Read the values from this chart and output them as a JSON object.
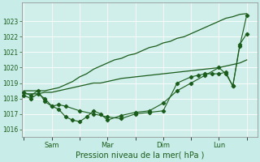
{
  "xlabel": "Pression niveau de la mer( hPa )",
  "bg_color": "#c8ece8",
  "plot_bg": "#d0eeea",
  "grid_color": "#b8ddd8",
  "line_color": "#1a5c1a",
  "ylim": [
    1015.5,
    1024.2
  ],
  "yticks": [
    1016,
    1017,
    1018,
    1019,
    1020,
    1021,
    1022,
    1023
  ],
  "xtick_positions": [
    0,
    4,
    8,
    12,
    16,
    20,
    24,
    28,
    32
  ],
  "xtick_labels": [
    "",
    "Sam",
    "",
    "Mar",
    "",
    "Dim",
    "",
    "Lun",
    ""
  ],
  "xlim": [
    -0.3,
    33.5
  ],
  "x_count": 33,
  "smooth1": [
    1018.5,
    1018.5,
    1018.5,
    1018.5,
    1018.6,
    1018.7,
    1018.9,
    1019.1,
    1019.4,
    1019.6,
    1019.9,
    1020.1,
    1020.3,
    1020.5,
    1020.6,
    1020.8,
    1020.9,
    1021.1,
    1021.3,
    1021.4,
    1021.6,
    1021.7,
    1021.9,
    1022.0,
    1022.2,
    1022.4,
    1022.6,
    1022.8,
    1023.0,
    1023.2,
    1023.3,
    1023.45,
    1023.5
  ],
  "smooth2": [
    1018.3,
    1018.3,
    1018.3,
    1018.4,
    1018.4,
    1018.5,
    1018.6,
    1018.7,
    1018.8,
    1018.9,
    1019.0,
    1019.0,
    1019.1,
    1019.2,
    1019.3,
    1019.35,
    1019.4,
    1019.45,
    1019.5,
    1019.55,
    1019.6,
    1019.65,
    1019.7,
    1019.75,
    1019.8,
    1019.85,
    1019.9,
    1019.95,
    1020.0,
    1020.1,
    1020.2,
    1020.3,
    1020.5
  ],
  "marker1_x": [
    0,
    1,
    2,
    3,
    4,
    5,
    6,
    7,
    8,
    9,
    10,
    11,
    12,
    14,
    16,
    18,
    20,
    22,
    24,
    26,
    28,
    29,
    30,
    31,
    32
  ],
  "marker1_y": [
    1018.4,
    1018.2,
    1018.5,
    1017.8,
    1017.5,
    1017.3,
    1016.8,
    1016.6,
    1016.5,
    1016.8,
    1017.2,
    1017.0,
    1016.6,
    1016.9,
    1017.1,
    1017.2,
    1017.7,
    1018.5,
    1019.0,
    1019.5,
    1020.0,
    1019.6,
    1018.8,
    1021.5,
    1022.2
  ],
  "marker2_x": [
    0,
    1,
    2,
    3,
    4,
    5,
    6,
    8,
    10,
    12,
    14,
    16,
    18,
    20,
    22,
    24,
    25,
    26,
    27,
    28,
    29,
    30,
    31,
    32
  ],
  "marker2_y": [
    1018.2,
    1018.0,
    1018.3,
    1018.0,
    1017.5,
    1017.6,
    1017.5,
    1017.2,
    1017.0,
    1016.8,
    1016.7,
    1017.0,
    1017.1,
    1017.2,
    1019.0,
    1019.4,
    1019.5,
    1019.6,
    1019.6,
    1019.6,
    1019.7,
    1018.8,
    1021.4,
    1023.4
  ]
}
